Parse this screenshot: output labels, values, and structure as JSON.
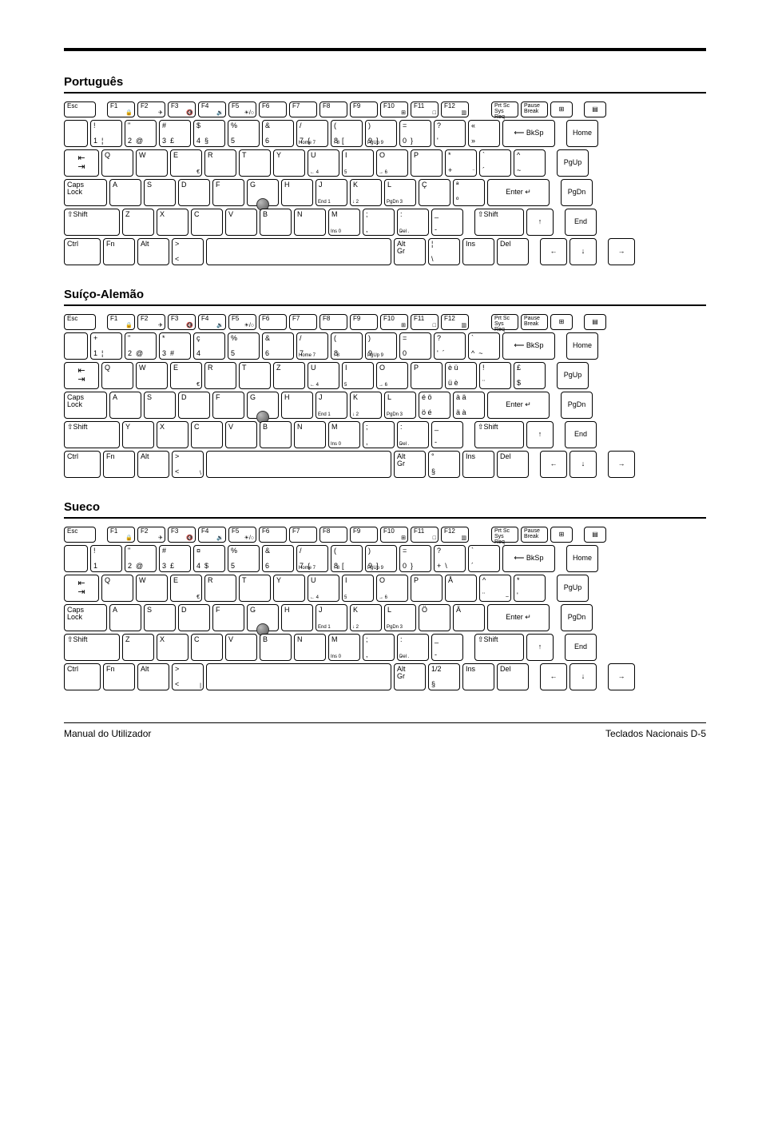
{
  "footer": {
    "left": "Manual do Utilizador",
    "right": "Teclados Nacionais  D-5"
  },
  "sections": [
    {
      "title": "Português",
      "layout": "pt"
    },
    {
      "title": "Suíço-Alemão",
      "layout": "ch"
    },
    {
      "title": "Sueco",
      "layout": "se"
    }
  ],
  "common": {
    "esc": "Esc",
    "f": [
      "F1",
      "F2",
      "F3",
      "F4",
      "F5",
      "F6",
      "F7",
      "F8",
      "F9",
      "F10",
      "F11",
      "F12"
    ],
    "prtsc": "Prt Sc",
    "sysreq": "Sys Req",
    "pause": "Pause",
    "break": "Break",
    "bksp": "BkSp",
    "home": "Home",
    "pgup": "PgUp",
    "pgdn": "PgDn",
    "end": "End",
    "caps": "Caps\nLock",
    "shift": "Shift",
    "ctrl": "Ctrl",
    "fn": "Fn",
    "alt": "Alt",
    "altgr": "Alt\nGr",
    "ins": "Ins",
    "del": "Del",
    "enter": "Enter",
    "tab": "⇤\n⇥",
    "space": "",
    "arrowL": "←",
    "arrowR": "→",
    "arrowU": "↑",
    "arrowD": "↓",
    "shiftsym": "⇧"
  },
  "layouts": {
    "pt": {
      "row1": [
        {
          "t": "!",
          "b": "1",
          "r": "¦"
        },
        {
          "t": "\"",
          "b": "2",
          "r": "@"
        },
        {
          "t": "#",
          "b": "3",
          "r": "£"
        },
        {
          "t": "$",
          "b": "4",
          "r": "§"
        },
        {
          "t": "%",
          "b": "5"
        },
        {
          "t": "&",
          "b": "6"
        },
        {
          "t": "/",
          "b": "7",
          "r": "{"
        },
        {
          "t": "(",
          "b": "8",
          "r": "["
        },
        {
          "t": ")",
          "b": "9",
          "r": "]"
        },
        {
          "t": "=",
          "b": "0",
          "r": "}"
        },
        {
          "t": "?",
          "b": "'"
        },
        {
          "t": "«",
          "b": "»"
        }
      ],
      "row2": [
        "Q",
        "W",
        "E",
        "R",
        "T",
        "Y",
        "U",
        "I",
        "O",
        "P"
      ],
      "row2end": [
        {
          "t": "*",
          "b": "+",
          "r": "¨"
        },
        {
          "t": "`",
          "b": "´"
        },
        {
          "t": "^",
          "b": "~"
        }
      ],
      "e_extra": "€",
      "row3": [
        "A",
        "S",
        "D",
        "F",
        "G",
        "H",
        "J",
        "K",
        "L"
      ],
      "row3end": [
        {
          "t": "Ç"
        },
        {
          "t": "ª",
          "b": "º"
        }
      ],
      "row4": [
        "Z",
        "X",
        "C",
        "V",
        "B",
        "N",
        "M"
      ],
      "row4end": [
        {
          "t": ";",
          "b": ","
        },
        {
          "t": ":",
          "b": "."
        },
        {
          "t": "_",
          "b": "-"
        }
      ],
      "lt": {
        "t": ">",
        "b": "<"
      },
      "space_right": [
        {
          "t": "¦",
          "b": "\\"
        }
      ]
    },
    "ch": {
      "row1": [
        {
          "t": "+",
          "b": "1",
          "r": "¦"
        },
        {
          "t": "\"",
          "b": "2",
          "r": "@"
        },
        {
          "t": "*",
          "b": "3",
          "r": "#"
        },
        {
          "t": "ç",
          "b": "4"
        },
        {
          "t": "%",
          "b": "5"
        },
        {
          "t": "&",
          "b": "6"
        },
        {
          "t": "/",
          "b": "7"
        },
        {
          "t": "(",
          "b": "8"
        },
        {
          "t": ")",
          "b": "9"
        },
        {
          "t": "=",
          "b": "0"
        },
        {
          "t": "?",
          "b": "'",
          "r": "´"
        },
        {
          "t": "`",
          "b": "^",
          "r": "~"
        }
      ],
      "row2": [
        "Q",
        "W",
        "E",
        "R",
        "T",
        "Z",
        "U",
        "I",
        "O",
        "P"
      ],
      "row2end": [
        {
          "t": "è  ü",
          "b": "ü  è"
        },
        {
          "t": "!",
          "b": "¨"
        },
        {
          "t": "£",
          "b": "$"
        }
      ],
      "e_extra": "€",
      "row3": [
        "A",
        "S",
        "D",
        "F",
        "G",
        "H",
        "J",
        "K",
        "L"
      ],
      "row3end": [
        {
          "t": "é  ö",
          "b": "ö  é"
        },
        {
          "t": "à  ä",
          "b": "ä  à"
        }
      ],
      "row4": [
        "Y",
        "X",
        "C",
        "V",
        "B",
        "N",
        "M"
      ],
      "row4end": [
        {
          "t": ";",
          "b": ","
        },
        {
          "t": ":",
          "b": "."
        },
        {
          "t": "_",
          "b": "-"
        }
      ],
      "lt": {
        "t": ">",
        "b": "<",
        "r": "\\"
      },
      "space_right": [
        {
          "t": "°",
          "b": "§"
        }
      ]
    },
    "se": {
      "row1": [
        {
          "t": "!",
          "b": "1"
        },
        {
          "t": "\"",
          "b": "2",
          "r": "@"
        },
        {
          "t": "#",
          "b": "3",
          "r": "£"
        },
        {
          "t": "¤",
          "b": "4",
          "r": "$"
        },
        {
          "t": "%",
          "b": "5"
        },
        {
          "t": "&",
          "b": "6"
        },
        {
          "t": "/",
          "b": "7",
          "r": "{"
        },
        {
          "t": "(",
          "b": "8",
          "r": "["
        },
        {
          "t": ")",
          "b": "9",
          "r": "]"
        },
        {
          "t": "=",
          "b": "0",
          "r": "}"
        },
        {
          "t": "?",
          "b": "+",
          "r": "\\"
        },
        {
          "t": "`",
          "b": "´"
        }
      ],
      "row2": [
        "Q",
        "W",
        "E",
        "R",
        "T",
        "Y",
        "U",
        "I",
        "O",
        "P"
      ],
      "row2end": [
        {
          "t": "Å"
        },
        {
          "t": "^",
          "b": "¨",
          "r": "~"
        },
        {
          "t": "*",
          "b": "'"
        }
      ],
      "e_extra": "€",
      "row3": [
        "A",
        "S",
        "D",
        "F",
        "G",
        "H",
        "J",
        "K",
        "L"
      ],
      "row3end": [
        {
          "t": "Ö"
        },
        {
          "t": "Ä"
        }
      ],
      "row4": [
        "Z",
        "X",
        "C",
        "V",
        "B",
        "N",
        "M"
      ],
      "row4end": [
        {
          "t": ";",
          "b": ","
        },
        {
          "t": ":",
          "b": "."
        },
        {
          "t": "_",
          "b": "-"
        }
      ],
      "lt": {
        "t": ">",
        "b": "<",
        "r": "|"
      },
      "space_right": [
        {
          "t": "1/2",
          "b": "§"
        }
      ]
    }
  },
  "sublabels": {
    "home7": "Home 7",
    "up8": "↑  8",
    "pgup9": "PgUp 9",
    "left4": "←  4",
    "five": "5",
    "right6": "→  6",
    "end1": "End  1",
    "down2": "↓  2",
    "pgdn3": "PgDn 3",
    "ins0": "Ins  0",
    "del": "Del  ."
  }
}
